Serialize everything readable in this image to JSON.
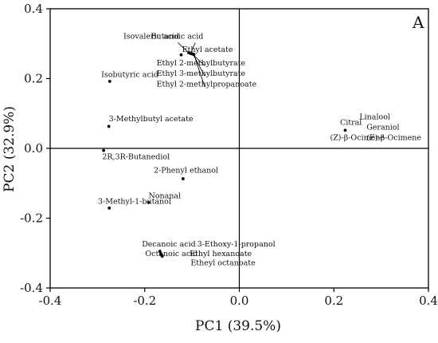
{
  "chart_data": {
    "type": "scatter",
    "panel_label": "A",
    "xlabel": "PC1 (39.5%)",
    "ylabel": "PC2 (32.9%)",
    "xlim": [
      -0.4,
      0.4
    ],
    "ylim": [
      -0.4,
      0.4
    ],
    "xticks": [
      -0.4,
      -0.2,
      0.0,
      0.2,
      0.4
    ],
    "yticks": [
      -0.4,
      -0.2,
      0.0,
      0.2,
      0.4
    ],
    "xtick_labels": [
      "-0.4",
      "-0.2",
      "0.0",
      "0.2",
      "0.4"
    ],
    "ytick_labels": [
      "-0.4",
      "-0.2",
      "0.0",
      "0.2",
      "0.4"
    ],
    "reference_lines": {
      "x": 0,
      "y": 0
    },
    "grid": false,
    "legend": "none",
    "marker_color": "#000000",
    "points": [
      {
        "x": -0.107,
        "y": 0.274
      },
      {
        "x": -0.103,
        "y": 0.272
      },
      {
        "x": -0.1,
        "y": 0.271
      },
      {
        "x": -0.098,
        "y": 0.27
      },
      {
        "x": -0.096,
        "y": 0.269
      },
      {
        "x": -0.123,
        "y": 0.268
      },
      {
        "x": -0.274,
        "y": 0.192
      },
      {
        "x": -0.276,
        "y": 0.063
      },
      {
        "x": -0.287,
        "y": -0.006
      },
      {
        "x": -0.119,
        "y": -0.087
      },
      {
        "x": -0.192,
        "y": -0.155
      },
      {
        "x": -0.275,
        "y": -0.171
      },
      {
        "x": -0.168,
        "y": -0.295
      },
      {
        "x": -0.166,
        "y": -0.302
      },
      {
        "x": -0.164,
        "y": -0.306
      },
      {
        "x": -0.163,
        "y": -0.309
      },
      {
        "x": 0.224,
        "y": 0.052
      }
    ],
    "annotations": [
      {
        "text": "Isovaleric acid",
        "x": -0.245,
        "y": 0.314
      },
      {
        "text": "Butanoic acid",
        "x": -0.187,
        "y": 0.314
      },
      {
        "text": "Ethyl acetate",
        "x": -0.121,
        "y": 0.277
      },
      {
        "text": "Ethyl 2-methylbutyrate",
        "x": -0.175,
        "y": 0.238
      },
      {
        "text": "Ethyl 3-methylbutyrate",
        "x": -0.175,
        "y": 0.208
      },
      {
        "text": "Ethyl 2-methylpropanoate",
        "x": -0.175,
        "y": 0.177
      },
      {
        "text": "Isobutyric acid",
        "x": -0.292,
        "y": 0.205
      },
      {
        "text": "3-Methylbutyl acetate",
        "x": -0.276,
        "y": 0.078
      },
      {
        "text": "2R,3R-Butanediol",
        "x": -0.29,
        "y": -0.031
      },
      {
        "text": "2-Phenyl ethanol",
        "x": -0.181,
        "y": -0.07
      },
      {
        "text": "Nonanal",
        "x": -0.192,
        "y": -0.143
      },
      {
        "text": "3-Methyl-1-butanol",
        "x": -0.299,
        "y": -0.159
      },
      {
        "text": "Decanoic acid",
        "x": -0.206,
        "y": -0.281
      },
      {
        "text": "Octanoic acid",
        "x": -0.199,
        "y": -0.309
      },
      {
        "text": "3-Ethoxy-1-propanol",
        "x": -0.089,
        "y": -0.281
      },
      {
        "text": "Ethyl hexanoate",
        "x": -0.105,
        "y": -0.309
      },
      {
        "text": "Etheyl octanoate",
        "x": -0.103,
        "y": -0.335
      },
      {
        "text": "Linalool",
        "x": 0.254,
        "y": 0.084
      },
      {
        "text": "Citral",
        "x": 0.213,
        "y": 0.067
      },
      {
        "text": "Geraniol",
        "x": 0.269,
        "y": 0.054
      },
      {
        "text": "(Z)-β-Ocimene",
        "x": 0.192,
        "y": 0.024
      },
      {
        "text": "(E)-β-Ocimene",
        "x": 0.269,
        "y": 0.024
      }
    ],
    "leader_lines": [
      [
        -0.107,
        0.274,
        -0.13,
        0.303
      ],
      [
        -0.103,
        0.272,
        -0.093,
        0.303
      ],
      [
        -0.1,
        0.271,
        -0.073,
        0.237
      ],
      [
        -0.098,
        0.27,
        -0.073,
        0.207
      ],
      [
        -0.096,
        0.269,
        -0.073,
        0.176
      ]
    ]
  }
}
